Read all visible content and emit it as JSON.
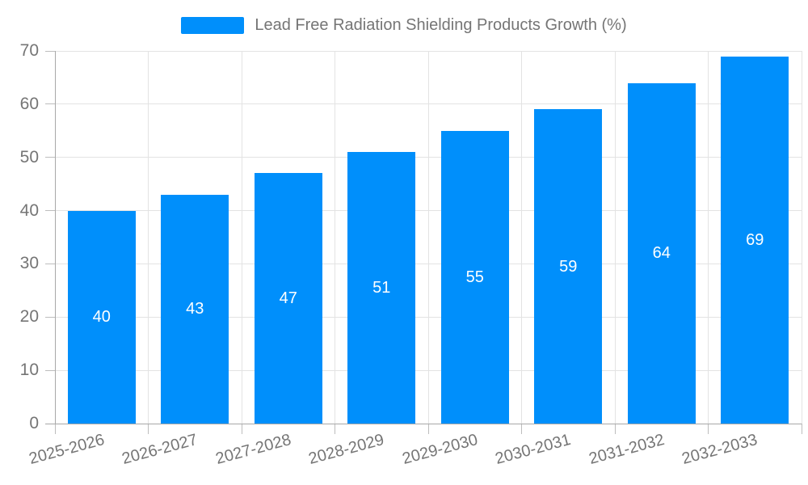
{
  "chart_data": {
    "type": "bar",
    "title": "Lead Free Radiation Shielding Products Growth (%)",
    "categories": [
      "2025-2026",
      "2026-2027",
      "2027-2028",
      "2028-2029",
      "2029-2030",
      "2030-2031",
      "2031-2032",
      "2032-2033"
    ],
    "values": [
      40,
      43,
      47,
      51,
      55,
      59,
      64,
      69
    ],
    "xlabel": "",
    "ylabel": "",
    "ylim": [
      0,
      70
    ],
    "yticks": [
      0,
      10,
      20,
      30,
      40,
      50,
      60,
      70
    ],
    "grid": true,
    "legend_position": "top",
    "bar_labels_shown": true,
    "x_label_rotation_deg": -15,
    "colors": {
      "bar": "#008FFB",
      "bar_label": "#FFFFFF",
      "axis_text": "#757575",
      "grid_line": "#E3E3E3",
      "axis_line": "#A8A8A8",
      "tick_mark": "#BDBDBD",
      "background": "#FFFFFF"
    }
  }
}
